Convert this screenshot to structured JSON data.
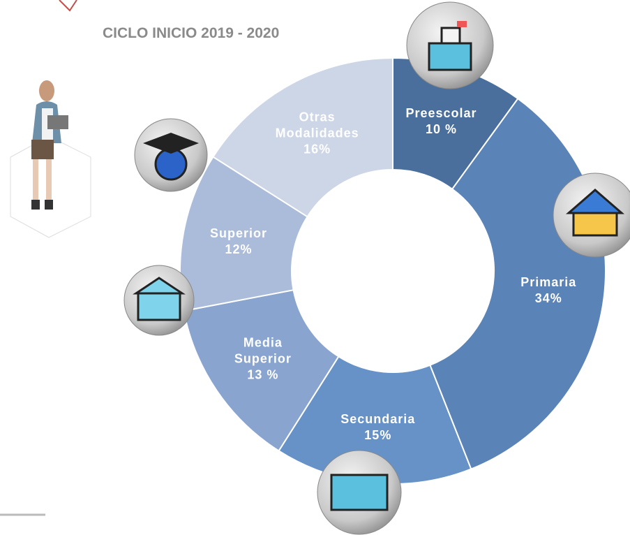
{
  "chart_data": {
    "type": "donut",
    "title": "CICLO INICIO 2019 - 2020",
    "categories": [
      "Preescolar",
      "Primaria",
      "Secundaria",
      "Media Superior",
      "Superior",
      "Otras Modalidades"
    ],
    "values": [
      10,
      34,
      15,
      13,
      12,
      16
    ],
    "value_labels": [
      "10 %",
      "34%",
      "15%",
      "13 %",
      "12%",
      "16%"
    ],
    "colors": [
      "#4a6f9c",
      "#5a83b7",
      "#6692c8",
      "#88a4cf",
      "#abbcda",
      "#cdd6e6"
    ]
  }
}
